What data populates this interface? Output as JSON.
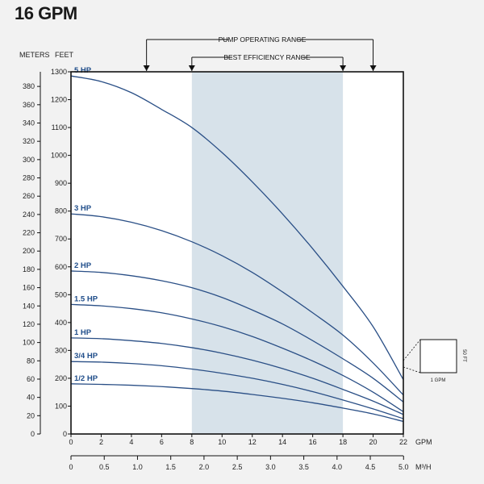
{
  "chart_data": {
    "type": "line",
    "title": "16 GPM",
    "y_left_unit": "METERS",
    "y_right_unit": "FEET",
    "x_unit_primary": "GPM",
    "x_unit_secondary": "M³/H",
    "xlim": [
      0,
      22
    ],
    "ylim_feet": [
      0,
      1300
    ],
    "ylim_meters": [
      0,
      396
    ],
    "xticks": [
      "0",
      "2",
      "4",
      "6",
      "8",
      "10",
      "12",
      "14",
      "16",
      "18",
      "20",
      "22"
    ],
    "x2ticks": [
      "0",
      "0.5",
      "1.0",
      "1.5",
      "2.0",
      "2.5",
      "3.0",
      "3.5",
      "4.0",
      "4.5",
      "5.0"
    ],
    "yticks_feet": [
      "0",
      "100",
      "200",
      "300",
      "400",
      "500",
      "600",
      "700",
      "800",
      "900",
      "1000",
      "1100",
      "1200",
      "1300"
    ],
    "yticks_meters": [
      "0",
      "20",
      "40",
      "60",
      "80",
      "100",
      "120",
      "140",
      "160",
      "180",
      "200",
      "220",
      "240",
      "260",
      "280",
      "300",
      "320",
      "340",
      "360",
      "380"
    ],
    "grid": false,
    "pump_operating_range": {
      "label": "PUMP OPERATING RANGE",
      "x": [
        5,
        20
      ]
    },
    "best_efficiency_range": {
      "label": "BEST EFFICIENCY RANGE",
      "x": [
        8,
        18
      ]
    },
    "series": [
      {
        "name": "5 HP",
        "x": [
          0,
          2,
          4,
          6,
          8,
          10,
          12,
          14,
          16,
          18,
          20,
          22
        ],
        "y": [
          1285,
          1265,
          1225,
          1165,
          1100,
          1010,
          905,
          790,
          665,
          530,
          385,
          195
        ]
      },
      {
        "name": "3 HP",
        "x": [
          0,
          2,
          4,
          6,
          8,
          10,
          12,
          14,
          16,
          18,
          20,
          22
        ],
        "y": [
          790,
          780,
          760,
          730,
          690,
          640,
          580,
          510,
          435,
          355,
          255,
          140
        ]
      },
      {
        "name": "2 HP",
        "x": [
          0,
          2,
          4,
          6,
          8,
          10,
          12,
          14,
          16,
          18,
          20,
          22
        ],
        "y": [
          585,
          580,
          568,
          550,
          525,
          490,
          445,
          395,
          335,
          270,
          200,
          115
        ]
      },
      {
        "name": "1.5 HP",
        "x": [
          0,
          2,
          4,
          6,
          8,
          10,
          12,
          14,
          16,
          18,
          20,
          22
        ],
        "y": [
          465,
          460,
          450,
          435,
          413,
          385,
          350,
          308,
          262,
          210,
          150,
          80
        ]
      },
      {
        "name": "1 HP",
        "x": [
          0,
          2,
          4,
          6,
          8,
          10,
          12,
          14,
          16,
          18,
          20,
          22
        ],
        "y": [
          345,
          342,
          335,
          325,
          310,
          290,
          265,
          235,
          200,
          160,
          118,
          70
        ]
      },
      {
        "name": "3/4 HP",
        "x": [
          0,
          2,
          4,
          6,
          8,
          10,
          12,
          14,
          16,
          18,
          20,
          22
        ],
        "y": [
          260,
          258,
          253,
          245,
          233,
          218,
          200,
          178,
          152,
          122,
          90,
          55
        ]
      },
      {
        "name": "1/2 HP",
        "x": [
          0,
          2,
          4,
          6,
          8,
          10,
          12,
          14,
          16,
          18,
          20,
          22
        ],
        "y": [
          180,
          178,
          175,
          170,
          163,
          154,
          142,
          128,
          112,
          93,
          72,
          45
        ]
      }
    ],
    "inset": {
      "side_label": "50 FT",
      "bottom_label": "1 GPM"
    },
    "colors": {
      "curve": "#2a4f86",
      "label": "#1f4d8a",
      "efficiency_band": "#d7e2ea",
      "frame": "#111111",
      "plot_bg": "#ffffff",
      "page_bg": "#f2f2f2"
    }
  }
}
